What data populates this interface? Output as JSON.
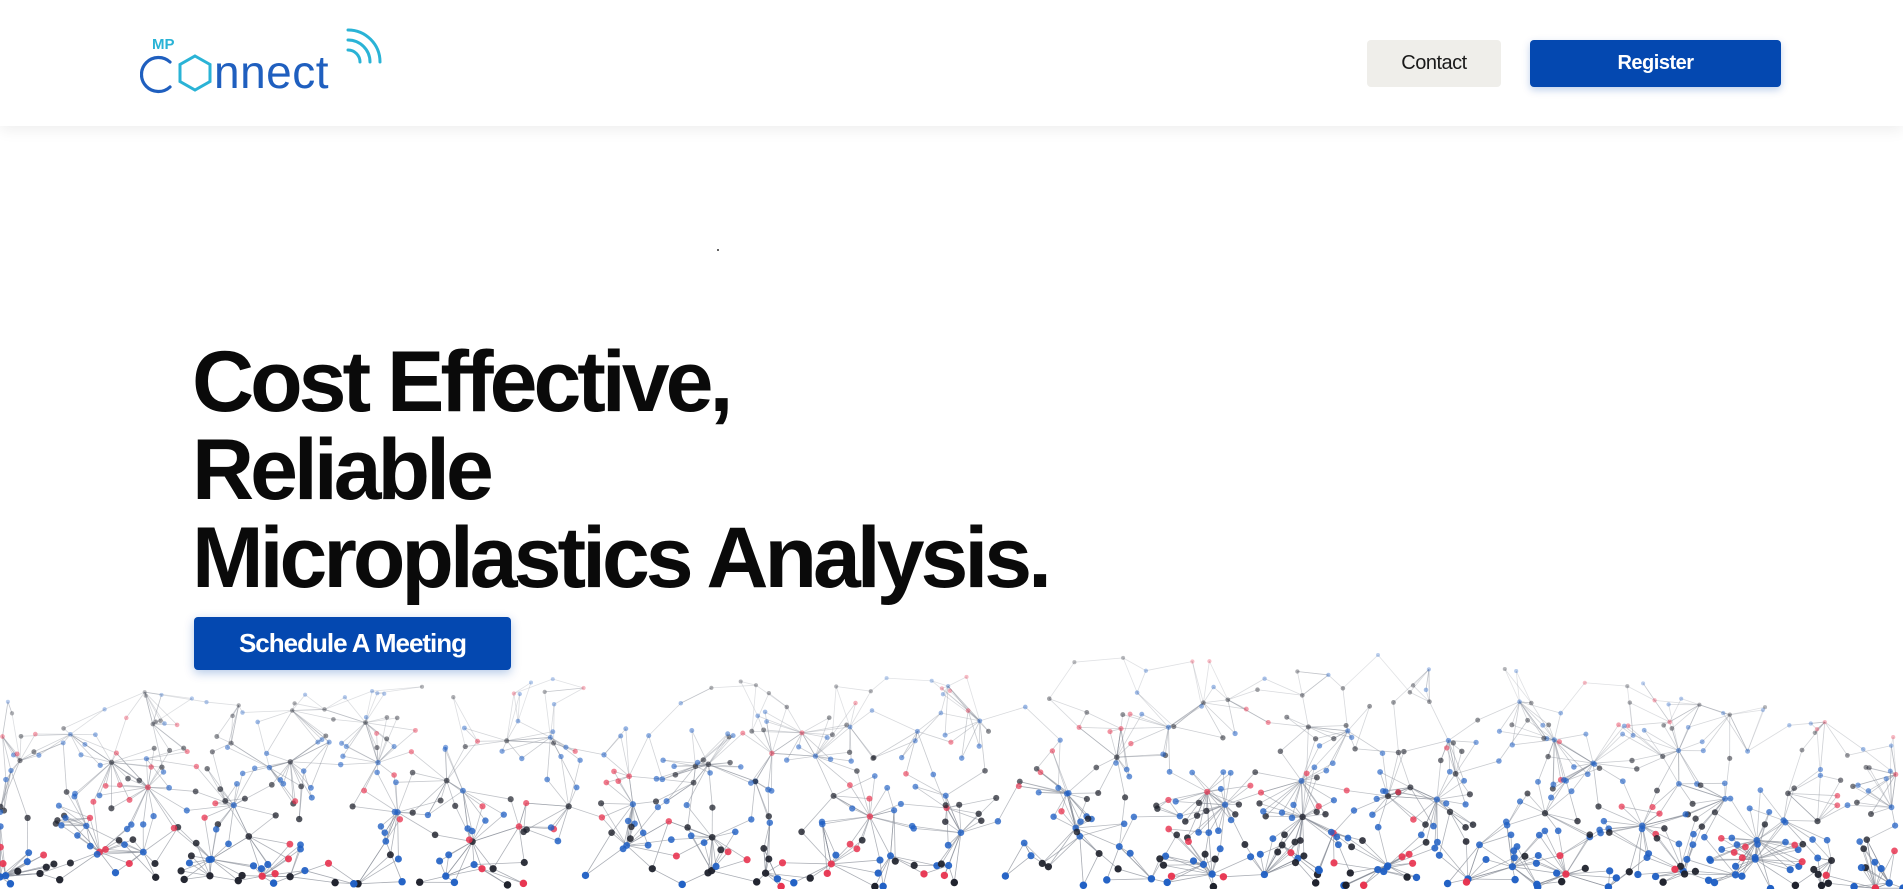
{
  "header": {
    "logo": {
      "prefix": "MP",
      "wordmark": "Connect"
    },
    "contact_label": "Contact",
    "register_label": "Register"
  },
  "hero": {
    "title_lines": [
      "Cost Effective,",
      "Reliable",
      "Microplastics Analysis."
    ],
    "cta_label": "Schedule A Meeting"
  },
  "colors": {
    "brand_blue": "#0448b0",
    "logo_blue": "#1f5fbf",
    "logo_cyan": "#2ab3d6",
    "node_blue": "#1f5fc4",
    "node_red": "#e8334f",
    "node_dark": "#1c1f2a",
    "contact_bg": "#efeeea"
  }
}
